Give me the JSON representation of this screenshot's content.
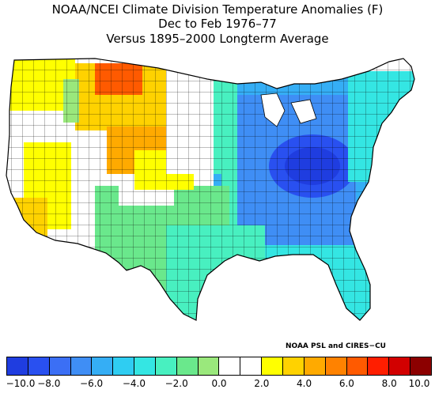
{
  "title": {
    "line1": "NOAA/NCEI Climate Division Temperature Anomalies (F)",
    "line2": "Dec to Feb 1976–77",
    "line3": "Versus 1895–2000 Longterm Average"
  },
  "credit": "NOAA PSL and CIRES−CU",
  "colorbar": {
    "colors": [
      "#1f3de0",
      "#2950f0",
      "#3b6ff5",
      "#3f8ef5",
      "#35aef5",
      "#2fcdf2",
      "#34e6e3",
      "#48f0c0",
      "#6ae88c",
      "#9ae87c",
      "#ffffff",
      "#ffffff",
      "#ffff00",
      "#ffd200",
      "#ffaa00",
      "#ff8200",
      "#ff5a00",
      "#ff1e00",
      "#d20000",
      "#8c0000"
    ],
    "ticks": [
      {
        "label": "−10.0",
        "value": -10
      },
      {
        "label": "−8.0",
        "value": -8
      },
      {
        "label": "−6.0",
        "value": -6
      },
      {
        "label": "−4.0",
        "value": -4
      },
      {
        "label": "−2.0",
        "value": -2
      },
      {
        "label": "0.0",
        "value": 0
      },
      {
        "label": "2.0",
        "value": 2
      },
      {
        "label": "4.0",
        "value": 4
      },
      {
        "label": "6.0",
        "value": 6
      },
      {
        "label": "8.0",
        "value": 8
      },
      {
        "label": "10.0",
        "value": 10
      }
    ],
    "range": [
      -10,
      10
    ]
  },
  "map": {
    "region": "Contiguous United States",
    "regions": [
      {
        "name": "pacific-northwest",
        "anomaly": 1.5,
        "color": "#ffff00"
      },
      {
        "name": "montana",
        "anomaly": 6.5,
        "color": "#ff5a00"
      },
      {
        "name": "wyoming-colorado",
        "anomaly": 3.5,
        "color": "#ffaa00"
      },
      {
        "name": "california-coast",
        "anomaly": 2.5,
        "color": "#ffd200"
      },
      {
        "name": "great-basin",
        "anomaly": 0.5,
        "color": "#ffffff"
      },
      {
        "name": "southwest",
        "anomaly": -1.5,
        "color": "#9ae87c"
      },
      {
        "name": "texas",
        "anomaly": -3.5,
        "color": "#48f0c0"
      },
      {
        "name": "plains",
        "anomaly": 0.5,
        "color": "#ffffff"
      },
      {
        "name": "upper-midwest",
        "anomaly": -5.0,
        "color": "#35aef5"
      },
      {
        "name": "ohio-valley",
        "anomaly": -9.0,
        "color": "#2950f0"
      },
      {
        "name": "southeast",
        "anomaly": -5.5,
        "color": "#3f8ef5"
      },
      {
        "name": "northeast",
        "anomaly": -4.5,
        "color": "#35aef5"
      },
      {
        "name": "florida",
        "anomaly": -3.5,
        "color": "#34e6e3"
      }
    ]
  }
}
